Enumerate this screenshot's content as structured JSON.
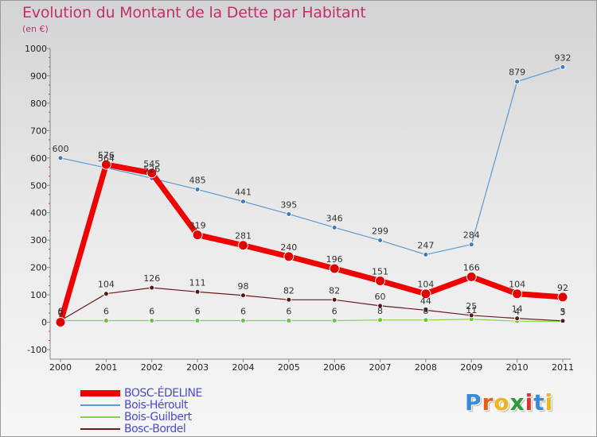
{
  "title": "Evolution du Montant de la Dette par Habitant",
  "subtitle": "(en €)",
  "logo_text": "Proxiti",
  "logo_colors": [
    "#3a8ad8",
    "#e85c1c",
    "#f0b41c",
    "#2a9c3c",
    "#d8342c",
    "#3a8ad8",
    "#f0b41c"
  ],
  "chart_data": {
    "type": "line",
    "title": "Evolution du Montant de la Dette par Habitant",
    "ylabel": "(en €)",
    "xlabel": "",
    "x": [
      "2000",
      "2001",
      "2002",
      "2003",
      "2004",
      "2005",
      "2006",
      "2007",
      "2008",
      "2009",
      "2010",
      "2011"
    ],
    "ylim": [
      -100,
      1000
    ],
    "yticks": [
      "-100",
      "0",
      "100",
      "200",
      "300",
      "400",
      "500",
      "600",
      "700",
      "800",
      "900",
      "1000"
    ],
    "grid": false,
    "legend_position": "bottom-left",
    "series": [
      {
        "name": "Bois-Héroult",
        "color": "#5a9ad2",
        "values": [
          600,
          564,
          526,
          485,
          441,
          395,
          346,
          299,
          247,
          284,
          879,
          932
        ],
        "labels": [
          "600",
          "564",
          "526",
          "485",
          "441",
          "395",
          "346",
          "299",
          "247",
          "284",
          "879",
          "932"
        ]
      },
      {
        "name": "Bois-Guilbert",
        "color": "#8ad24a",
        "values": [
          6,
          6,
          6,
          6,
          6,
          6,
          6,
          8,
          8,
          11,
          4,
          3
        ],
        "labels": [
          "6",
          "6",
          "6",
          "6",
          "6",
          "6",
          "6",
          "8",
          "8",
          "11",
          "4",
          "3"
        ]
      },
      {
        "name": "Bosc-Bordel",
        "color": "#6a1c1c",
        "values": [
          6,
          104,
          126,
          111,
          98,
          82,
          82,
          60,
          44,
          25,
          14,
          5
        ],
        "labels": [
          "6",
          "104",
          "126",
          "111",
          "98",
          "82",
          "82",
          "60",
          "44",
          "25",
          "14",
          "5"
        ]
      },
      {
        "name": "BOSC-ÉDELINE",
        "color": "#f00000",
        "values": [
          0,
          576,
          545,
          319,
          281,
          240,
          196,
          151,
          104,
          166,
          104,
          92
        ],
        "labels": [
          "0",
          "576",
          "545",
          "319",
          "281",
          "240",
          "196",
          "151",
          "104",
          "166",
          "104",
          "92"
        ]
      }
    ],
    "legend": [
      {
        "name": "BOSC-ÉDELINE",
        "color": "#f00000",
        "thickness": 8
      },
      {
        "name": "Bois-Héroult",
        "color": "#5a9ad2",
        "thickness": 2
      },
      {
        "name": "Bois-Guilbert",
        "color": "#8ad24a",
        "thickness": 2
      },
      {
        "name": "Bosc-Bordel",
        "color": "#6a1c1c",
        "thickness": 2
      }
    ]
  }
}
